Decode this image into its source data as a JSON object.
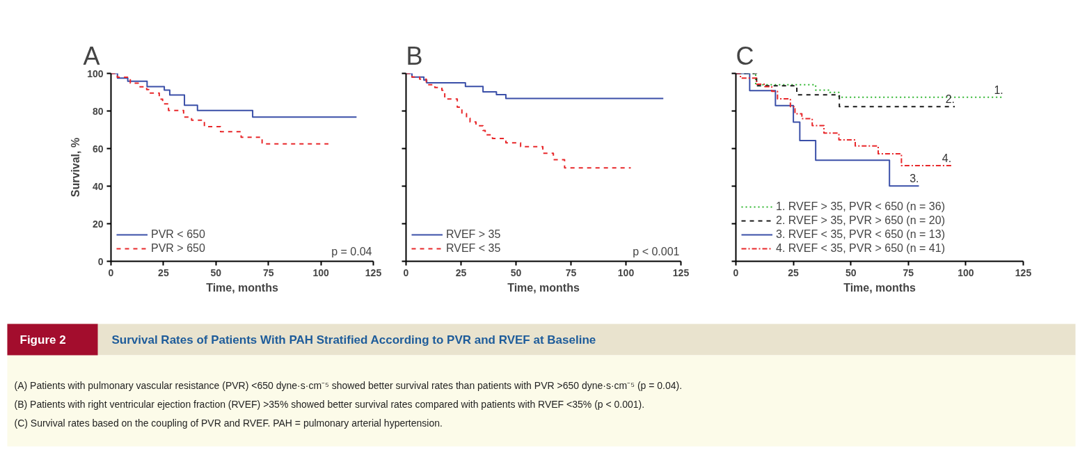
{
  "chart_data": [
    {
      "type": "step",
      "title": "A",
      "xlabel": "Time, months",
      "ylabel": "Survival, %",
      "xlim": [
        0,
        125
      ],
      "xticks": [
        0,
        25,
        50,
        75,
        100,
        125
      ],
      "ylim": [
        0,
        100
      ],
      "yticks": [
        0,
        20,
        40,
        60,
        80,
        100
      ],
      "legend": "bottom left",
      "annotations": [
        "p = 0.04"
      ],
      "series": [
        {
          "name": "PVR < 650",
          "color": "#3a4fa8",
          "line_style": "solid",
          "x": [
            0,
            3.1,
            8,
            17.2,
            25.4,
            28,
            35,
            41.2,
            67.5,
            117
          ],
          "values": [
            100,
            97.5,
            95.8,
            93,
            91.1,
            88.5,
            83.1,
            80.3,
            76.8,
            76.8
          ]
        },
        {
          "name": "PVR > 650",
          "color": "#e8282b",
          "line_style": "dashed",
          "x": [
            0,
            3,
            9.2,
            13,
            17,
            18,
            23,
            24.6,
            27.4,
            34.6,
            38.4,
            44.5,
            52.2,
            62,
            72,
            103.6
          ],
          "values": [
            100,
            98,
            94.8,
            92.9,
            91.4,
            89.5,
            86.3,
            83.8,
            80.3,
            76.8,
            75.1,
            71.7,
            69,
            66,
            62.5,
            62.5
          ]
        }
      ]
    },
    {
      "type": "step",
      "title": "B",
      "xlabel": "Time, months",
      "xlim": [
        0,
        125
      ],
      "xticks": [
        0,
        25,
        50,
        75,
        100,
        125
      ],
      "ylim": [
        0,
        100
      ],
      "yticks": [
        0,
        20,
        40,
        60,
        80,
        100
      ],
      "tick_labels": "x",
      "legend": "bottom left",
      "annotations": [
        "p < 0.001"
      ],
      "series": [
        {
          "name": "RVEF > 35",
          "color": "#3a4fa8",
          "line_style": "solid",
          "x": [
            0,
            2.7,
            8.1,
            9.4,
            27,
            35,
            41.1,
            45.4,
            117
          ],
          "values": [
            100,
            98.1,
            96.5,
            95,
            93.1,
            90.2,
            88.7,
            86.7,
            86.7
          ]
        },
        {
          "name": "RVEF < 35",
          "color": "#e8282b",
          "line_style": "dashed",
          "x": [
            0,
            2.7,
            6.2,
            9.2,
            13.1,
            16.3,
            17.6,
            23.3,
            25.4,
            27.5,
            29.1,
            31.8,
            35,
            36,
            39.3,
            45.4,
            52.1,
            62.2,
            67,
            72.1,
            102.2
          ],
          "values": [
            100,
            98.1,
            96.9,
            94,
            92.5,
            91,
            86.4,
            82,
            78.6,
            76.1,
            74.2,
            72.1,
            69.6,
            67.3,
            65.4,
            63.1,
            61,
            57.5,
            54.1,
            49.7,
            49.7
          ]
        }
      ]
    },
    {
      "type": "step",
      "title": "C",
      "xlabel": "Time, months",
      "xlim": [
        0,
        125
      ],
      "xticks": [
        0,
        25,
        50,
        75,
        100,
        125
      ],
      "ylim": [
        0,
        100
      ],
      "yticks": [
        0,
        20,
        40,
        60,
        80,
        100
      ],
      "tick_labels": "x",
      "legend": "bottom left",
      "annotations": [
        "1.",
        "2.",
        "3.",
        "4."
      ],
      "series": [
        {
          "name": "1. RVEF > 35, PVR < 650 (n = 36)",
          "color": "#2db52d",
          "line_style": "dotted",
          "x": [
            0,
            8.6,
            34.7,
            40.8,
            44.8,
            116.3
          ],
          "values": [
            100,
            94,
            91.1,
            89.9,
            87.3,
            87.3
          ]
        },
        {
          "name": "2. RVEF > 35, PVR > 650 (n = 20)",
          "color": "#1a1a1a",
          "line_style": "dashed",
          "x": [
            0,
            9,
            26.5,
            45,
            95.2
          ],
          "values": [
            100,
            93.4,
            88.6,
            82.3,
            82.3
          ]
        },
        {
          "name": "3. RVEF < 35, PVR < 650 (n = 13)",
          "color": "#3a4fa8",
          "line_style": "solid",
          "x": [
            0,
            6,
            17.2,
            25,
            27.8,
            34.7,
            66.8,
            79.6
          ],
          "values": [
            100,
            90.8,
            82.9,
            74.1,
            64.3,
            53.8,
            40.1,
            40.1
          ]
        },
        {
          "name": "4. RVEF < 35, PVR > 650 (n = 41)",
          "color": "#e8282b",
          "line_style": "dashdot",
          "x": [
            0,
            2,
            9,
            12.6,
            15.6,
            18.1,
            23.7,
            25.7,
            28.7,
            33.2,
            38.3,
            44.8,
            51.9,
            61.9,
            72,
            93.7
          ],
          "values": [
            100,
            97.5,
            94.3,
            93,
            90.5,
            86.5,
            82.3,
            78.5,
            75.9,
            72.2,
            68.2,
            64.6,
            61.4,
            57.2,
            50.9,
            50.9
          ]
        }
      ]
    },
    {
      "type": "other",
      "title": "Figure 2",
      "subtitle": "Survival Rates of Patients With PAH Stratified According to PVR and RVEF at Baseline",
      "annotations": [
        "(A) Patients with pulmonary vascular resistance (PVR) <650 dyne·s·cm⁻⁵ showed better survival rates than patients with PVR >650 dyne·s·cm⁻⁵ (p = 0.04).",
        "(B) Patients with right ventricular ejection fraction (RVEF) >35% showed better survival rates compared with patients with RVEF <35% (p < 0.001).",
        "(C) Survival rates based on the coupling of PVR and RVEF. PAH = pulmonary arterial hypertension."
      ]
    }
  ]
}
